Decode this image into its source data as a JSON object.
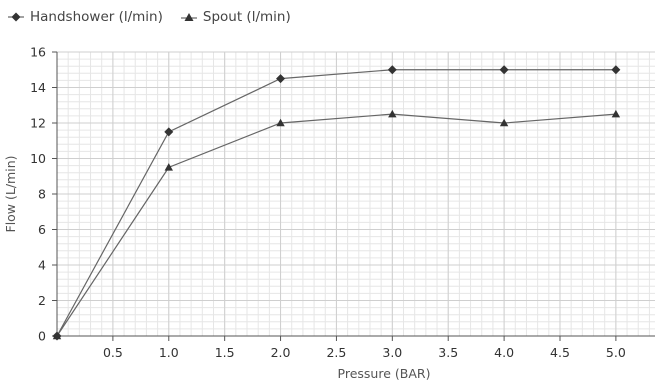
{
  "chart_data": {
    "type": "line",
    "xlabel": "Pressure (BAR)",
    "ylabel": "Flow (L/min)",
    "xlim": [
      0,
      5.35
    ],
    "ylim": [
      0,
      16
    ],
    "x_ticks": [
      "0.5",
      "1.0",
      "1.5",
      "2.0",
      "2.5",
      "3.0",
      "3.5",
      "4.0",
      "4.5",
      "5.0"
    ],
    "y_ticks": [
      "0",
      "2",
      "4",
      "6",
      "8",
      "10",
      "12",
      "14",
      "16"
    ],
    "grid": true,
    "legend": "top-left",
    "series": [
      {
        "name": "Handshower (l/min)",
        "marker": "diamond",
        "color": "#444444",
        "x": [
          0,
          1.0,
          2.0,
          3.0,
          4.0,
          5.0
        ],
        "y": [
          0,
          11.5,
          14.5,
          15.0,
          15.0,
          15.0
        ]
      },
      {
        "name": "Spout (l/min)",
        "marker": "triangle",
        "color": "#444444",
        "x": [
          0,
          1.0,
          2.0,
          3.0,
          4.0,
          5.0
        ],
        "y": [
          0,
          9.5,
          12.0,
          12.5,
          12.0,
          12.5
        ]
      }
    ]
  }
}
